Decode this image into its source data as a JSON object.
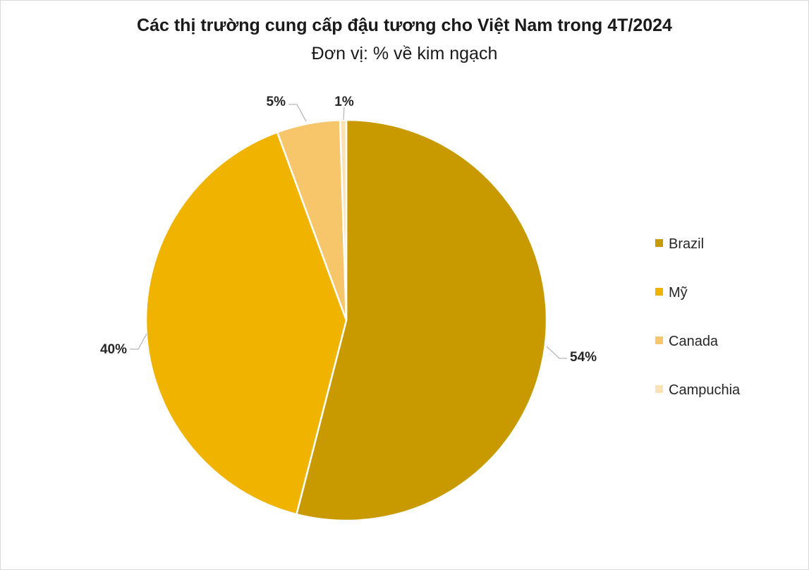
{
  "chart_data": {
    "type": "pie",
    "title": "Các thị trường cung cấp đậu tương cho Việt Nam trong 4T/2024",
    "subtitle": "Đơn vị: % về kim ngạch",
    "slices": [
      {
        "label": "Brazil",
        "value": 54,
        "display": "54%",
        "color": "#c99a00"
      },
      {
        "label": "Mỹ",
        "value": 40.4,
        "display": "40%",
        "color": "#f0b400"
      },
      {
        "label": "Canada",
        "value": 5.1,
        "display": "5%",
        "color": "#f7c66b"
      },
      {
        "label": "Campuchia",
        "value": 0.5,
        "display": "1%",
        "color": "#fbe2b4"
      }
    ],
    "legend_position": "right"
  }
}
